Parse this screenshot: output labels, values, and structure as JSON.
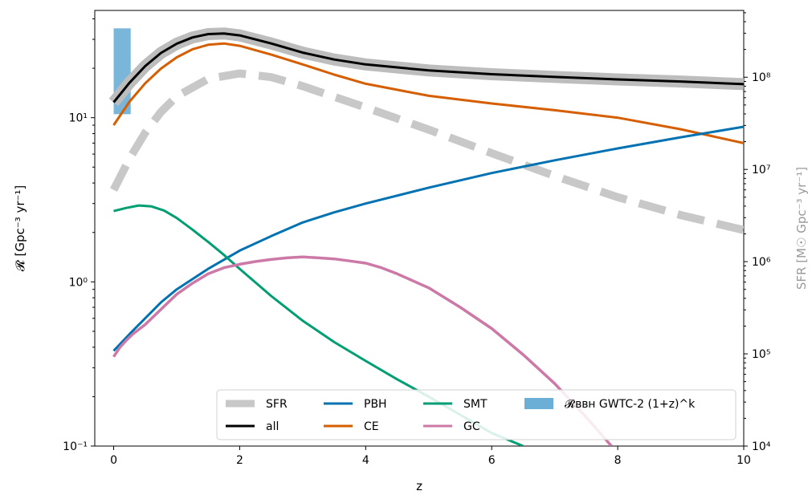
{
  "chart_data": {
    "type": "line",
    "xlabel": "z",
    "ylabel": "𝓡  [Gpc⁻³ yr⁻¹]",
    "ylabel_right": "SFR  [M☉ Gpc⁻³ yr⁻¹]",
    "xlim": [
      -0.3,
      10
    ],
    "ylim": [
      0.1,
      45
    ],
    "ylim_right": [
      10000,
      530000000
    ],
    "yscale": "log",
    "yscale_right": "log",
    "x_ticks": [
      0,
      2,
      4,
      6,
      8,
      10
    ],
    "y_ticks": [
      0.1,
      1,
      10
    ],
    "y_tick_labels": [
      "10⁻¹",
      "10⁰",
      "10¹"
    ],
    "y_right_ticks": [
      10000,
      100000,
      1000000,
      10000000,
      100000000
    ],
    "y_right_tick_labels": [
      "10⁴",
      "10⁵",
      "10⁶",
      "10⁷",
      "10⁸"
    ],
    "grid": false,
    "legend_position": "bottom-right",
    "legend": [
      {
        "label": "SFR",
        "color": "#c8c8c8",
        "style": "dashed-thick"
      },
      {
        "label": "all",
        "color": "#000000",
        "style": "solid"
      },
      {
        "label": "PBH",
        "color": "#0072b2",
        "style": "solid"
      },
      {
        "label": "CE",
        "color": "#d55e00",
        "style": "solid"
      },
      {
        "label": "SMT",
        "color": "#009e73",
        "style": "solid"
      },
      {
        "label": "GC",
        "color": "#cc79a7",
        "style": "solid"
      },
      {
        "label": "𝓡ʙʙʜ GWTC-2 (1+z)^k",
        "color": "#6baed6",
        "style": "patch"
      }
    ],
    "series": [
      {
        "name": "all",
        "axis": "left",
        "color": "#000000",
        "band_color": "#bdbdbd",
        "x": [
          0,
          0.25,
          0.5,
          0.75,
          1.0,
          1.25,
          1.5,
          1.75,
          2.0,
          2.5,
          3.0,
          3.5,
          4.0,
          5.0,
          6.0,
          7.0,
          8.0,
          9.0,
          10.0
        ],
        "y": [
          12.4,
          16.3,
          20.6,
          24.8,
          28.2,
          30.8,
          32.3,
          32.6,
          31.7,
          28.3,
          24.9,
          22.6,
          21.1,
          19.4,
          18.4,
          17.7,
          17.1,
          16.6,
          16.0
        ]
      },
      {
        "name": "CE",
        "axis": "left",
        "color": "#d55e00",
        "x": [
          0,
          0.25,
          0.5,
          0.75,
          1.0,
          1.25,
          1.5,
          1.75,
          2.0,
          2.5,
          3.0,
          3.5,
          4.0,
          5.0,
          6.0,
          7.0,
          8.0,
          9.0,
          10.0
        ],
        "y": [
          9.0,
          12.5,
          16.2,
          19.9,
          23.3,
          26.1,
          27.8,
          28.3,
          27.4,
          24.2,
          21.1,
          18.3,
          16.1,
          13.6,
          12.2,
          11.1,
          10.0,
          8.5,
          7.0
        ]
      },
      {
        "name": "PBH",
        "axis": "left",
        "color": "#0072b2",
        "x": [
          0,
          0.25,
          0.5,
          0.75,
          1.0,
          1.5,
          2.0,
          2.5,
          3.0,
          3.5,
          4.0,
          5.0,
          6.0,
          7.0,
          8.0,
          9.0,
          10.0
        ],
        "y": [
          0.38,
          0.48,
          0.6,
          0.75,
          0.9,
          1.2,
          1.55,
          1.9,
          2.3,
          2.65,
          3.0,
          3.75,
          4.6,
          5.5,
          6.5,
          7.6,
          8.8
        ]
      },
      {
        "name": "SMT",
        "axis": "left",
        "color": "#009e73",
        "x": [
          0,
          0.2,
          0.4,
          0.6,
          0.8,
          1.0,
          1.25,
          1.5,
          1.75,
          2.0,
          2.5,
          3.0,
          3.5,
          4.0,
          4.5,
          5.0,
          5.5,
          6.0,
          6.5
        ],
        "y": [
          2.7,
          2.82,
          2.92,
          2.88,
          2.72,
          2.45,
          2.08,
          1.75,
          1.46,
          1.2,
          0.82,
          0.58,
          0.43,
          0.33,
          0.255,
          0.2,
          0.155,
          0.12,
          0.1
        ]
      },
      {
        "name": "GC",
        "axis": "left",
        "color": "#cc79a7",
        "x": [
          0,
          0.1,
          0.2,
          0.3,
          0.5,
          0.75,
          1.0,
          1.25,
          1.5,
          1.75,
          2.0,
          2.25,
          2.5,
          2.75,
          3.0,
          3.25,
          3.5,
          3.75,
          4.0,
          4.25,
          4.5,
          5.0,
          5.5,
          6.0,
          6.5,
          7.0,
          7.5,
          7.9
        ],
        "y": [
          0.35,
          0.4,
          0.44,
          0.48,
          0.55,
          0.68,
          0.84,
          0.98,
          1.12,
          1.22,
          1.28,
          1.33,
          1.37,
          1.4,
          1.42,
          1.4,
          1.38,
          1.34,
          1.3,
          1.22,
          1.12,
          0.92,
          0.7,
          0.52,
          0.36,
          0.24,
          0.15,
          0.1
        ]
      },
      {
        "name": "SFR",
        "axis": "right",
        "color": "#c8c8c8",
        "style": "dashed-thick",
        "x": [
          0,
          0.25,
          0.5,
          0.75,
          1.0,
          1.5,
          2.0,
          2.5,
          3.0,
          4.0,
          5.0,
          6.0,
          7.0,
          8.0,
          9.0,
          10.0
        ],
        "y": [
          6000000,
          13000000,
          25000000,
          42000000,
          62000000,
          96000000,
          110000000,
          100000000,
          80000000,
          47000000,
          27000000,
          15000000,
          8500000,
          5000000,
          3200000,
          2200000
        ]
      }
    ],
    "rate_band": {
      "label": "𝓡ʙʙʜ GWTC-2 (1+z)^k",
      "color": "#6baed6",
      "x": [
        0,
        0.27
      ],
      "y": [
        10.5,
        35
      ]
    }
  }
}
